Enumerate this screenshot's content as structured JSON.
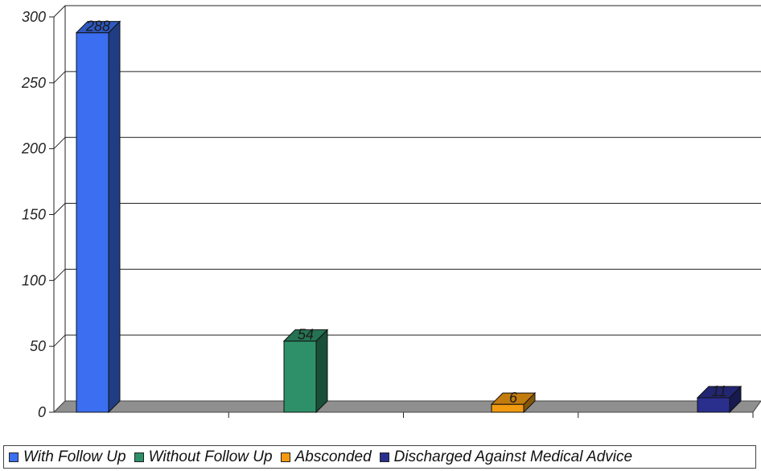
{
  "chart_data": {
    "type": "bar",
    "title": "",
    "xlabel": "",
    "ylabel": "",
    "ylim": [
      0,
      300
    ],
    "yticks": [
      0,
      50,
      100,
      150,
      200,
      250,
      300
    ],
    "grid": true,
    "legend_position": "bottom",
    "series": [
      {
        "name": "With Follow Up",
        "value": 288,
        "color": "#3B6EF0"
      },
      {
        "name": "Without Follow Up",
        "value": 54,
        "color": "#2E9068"
      },
      {
        "name": "Absconded",
        "value": 6,
        "color": "#F29A10"
      },
      {
        "name": "Discharged Against Medical Advice",
        "value": 11,
        "color": "#2A2F8E"
      }
    ]
  }
}
